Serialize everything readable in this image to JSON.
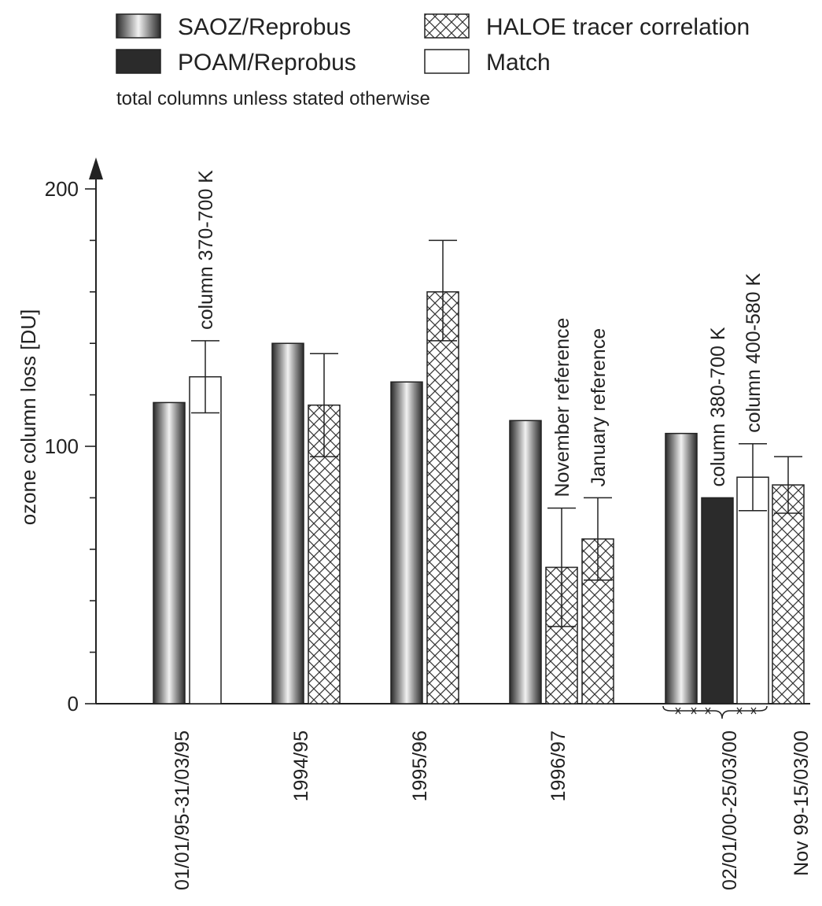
{
  "chart_data": {
    "type": "bar",
    "ylabel": "ozone column loss [DU]",
    "ylim": [
      0,
      200
    ],
    "yticks": [
      0,
      100,
      200
    ],
    "note": "total columns unless stated otherwise",
    "grid": false,
    "legend_position": "top",
    "legend": [
      {
        "name": "SAOZ/Reprobus",
        "style": "saoz"
      },
      {
        "name": "HALOE tracer correlation",
        "style": "haloe"
      },
      {
        "name": "POAM/Reprobus",
        "style": "poam"
      },
      {
        "name": "Match",
        "style": "match"
      }
    ],
    "groups": [
      {
        "label": "01/01/95-31/03/95",
        "bars": [
          {
            "series": "SAOZ/Reprobus",
            "value": 117
          },
          {
            "series": "Match",
            "value": 127,
            "error": [
              113,
              141
            ],
            "annotation": "column 370-700 K"
          }
        ]
      },
      {
        "label": "1994/95",
        "bars": [
          {
            "series": "SAOZ/Reprobus",
            "value": 140
          },
          {
            "series": "HALOE tracer correlation",
            "value": 116,
            "error": [
              96,
              136
            ]
          }
        ]
      },
      {
        "label": "1995/96",
        "bars": [
          {
            "series": "SAOZ/Reprobus",
            "value": 125
          },
          {
            "series": "HALOE tracer correlation",
            "value": 160,
            "error": [
              141,
              180
            ]
          }
        ]
      },
      {
        "label": "1996/97",
        "bars": [
          {
            "series": "SAOZ/Reprobus",
            "value": 110
          },
          {
            "series": "HALOE tracer correlation",
            "value": 53,
            "error": [
              30,
              76
            ],
            "annotation": "November reference"
          },
          {
            "series": "HALOE tracer correlation",
            "value": 64,
            "error": [
              48,
              80
            ],
            "annotation": "January reference"
          }
        ]
      },
      {
        "label": "02/01/00-25/03/00",
        "bars": [
          {
            "series": "SAOZ/Reprobus",
            "value": 105
          },
          {
            "series": "POAM/Reprobus",
            "value": 80,
            "annotation": "column 380-700 K"
          },
          {
            "series": "Match",
            "value": 88,
            "error": [
              75,
              101
            ],
            "annotation": "column 400-580 K"
          }
        ]
      },
      {
        "label": "Nov 99-15/03/00",
        "bars": [
          {
            "series": "HALOE tracer correlation",
            "value": 85,
            "error": [
              74,
              96
            ]
          }
        ]
      }
    ]
  }
}
